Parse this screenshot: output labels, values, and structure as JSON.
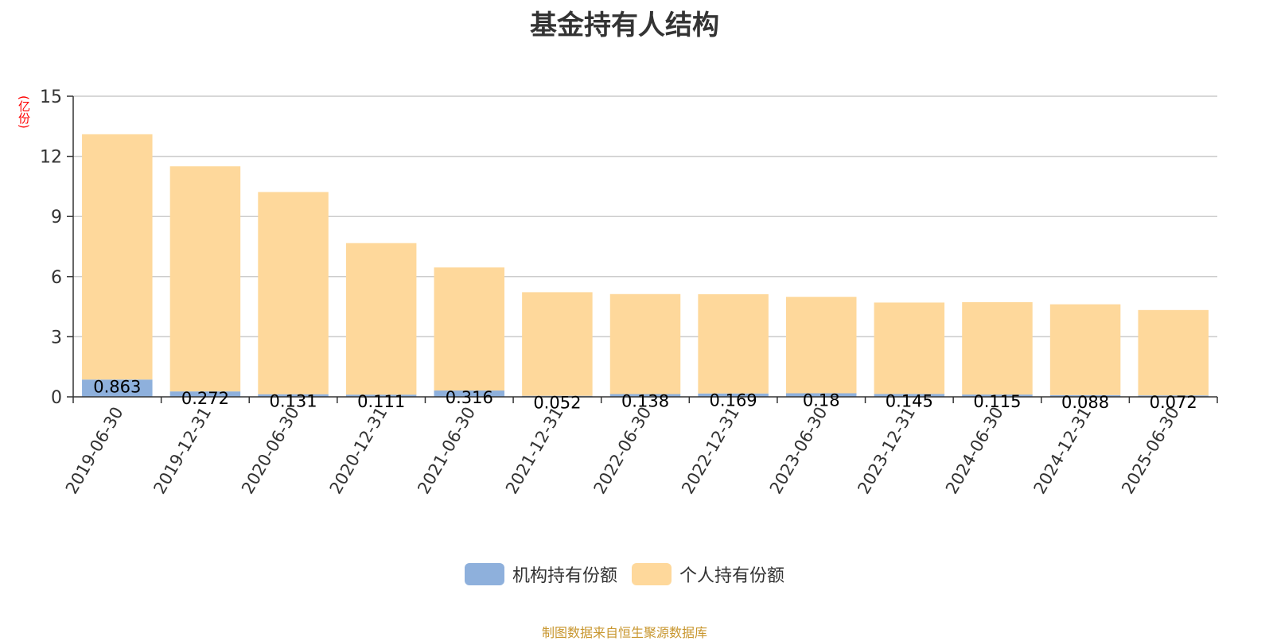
{
  "title": "基金持有人结构",
  "unit": "(亿份)",
  "source": "制图数据来自恒生聚源数据库",
  "legend": [
    {
      "name": "机构持有份额",
      "color": "#8eb0dc"
    },
    {
      "name": "个人持有份额",
      "color": "#fed89b"
    }
  ],
  "chart_data": {
    "type": "bar",
    "stacked": true,
    "title": "基金持有人结构",
    "ylabel": "(亿份)",
    "ylim": [
      0,
      15
    ],
    "yticks": [
      0,
      3,
      6,
      9,
      12,
      15
    ],
    "grid": true,
    "legend_position": "bottom",
    "categories": [
      "2019-06-30",
      "2019-12-31",
      "2020-06-30",
      "2020-12-31",
      "2021-06-30",
      "2021-12-31",
      "2022-06-30",
      "2022-12-31",
      "2023-06-30",
      "2023-12-31",
      "2024-06-30",
      "2024-12-31",
      "2025-06-30"
    ],
    "series": [
      {
        "name": "机构持有份额",
        "color": "#8eb0dc",
        "values": [
          0.863,
          0.272,
          0.131,
          0.111,
          0.316,
          0.052,
          0.138,
          0.169,
          0.18,
          0.145,
          0.115,
          0.088,
          0.072
        ],
        "labels": [
          "0.863",
          "0.272",
          "0.131",
          "0.111",
          "0.316",
          "0.052",
          "0.138",
          "0.169",
          "0.18",
          "0.145",
          "0.115",
          "0.088",
          "0.072"
        ]
      },
      {
        "name": "个人持有份额",
        "color": "#fed89b",
        "values": [
          12.24,
          11.23,
          10.09,
          7.56,
          6.14,
          5.17,
          4.99,
          4.95,
          4.81,
          4.56,
          4.61,
          4.53,
          4.26
        ]
      }
    ]
  }
}
